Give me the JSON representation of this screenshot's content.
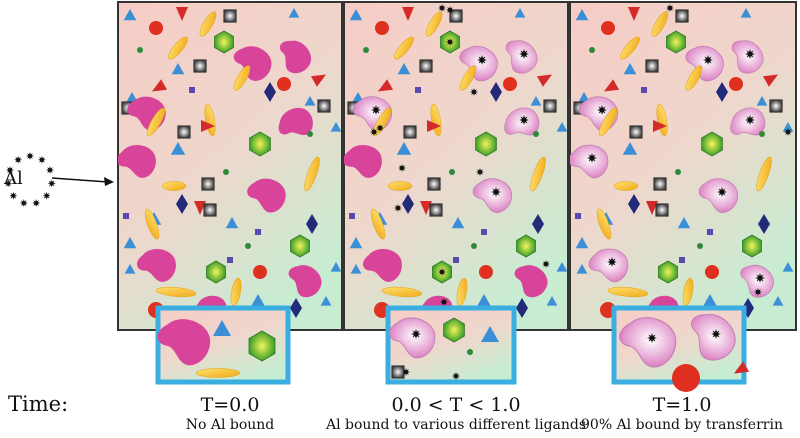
{
  "al_label": "Al",
  "time_label": "Time:",
  "stages": [
    {
      "title": "T=0.0",
      "caption": "No Al bound"
    },
    {
      "title": "0.0 < T < 1.0",
      "caption": "Al bound to various different ligands"
    },
    {
      "title": "T=1.0",
      "caption": "90% Al bound by transferrin"
    }
  ],
  "colors": {
    "panel_border": "#333333",
    "inset_border": "#3aaee0",
    "bean": "#d8449a",
    "bean_bound": "#eab8de",
    "triangle": "#3a8fd6",
    "red_triangle": "#d42a2a",
    "red_circle": "#e03020",
    "ellipse": "#f6c12a",
    "diamond": "#232a7a",
    "hexagon": "#4caf2c",
    "green_dot": "#2d8a3c",
    "square": "#5a4ab0"
  }
}
